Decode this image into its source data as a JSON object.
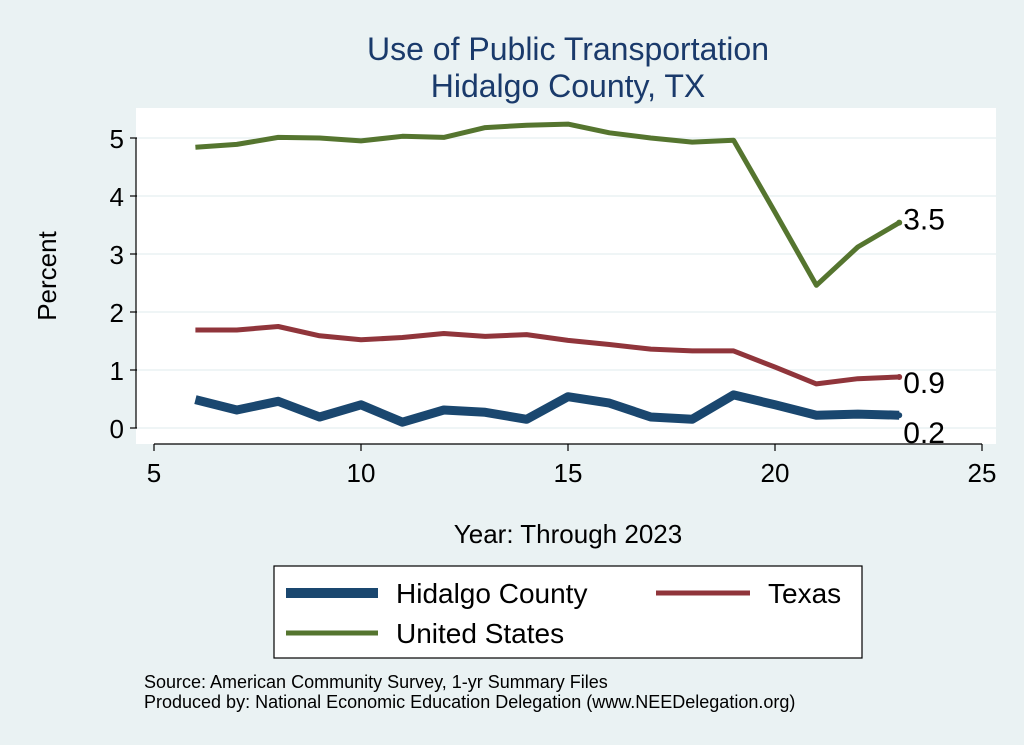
{
  "chart_data": {
    "type": "line",
    "title": [
      "Use of Public Transportation",
      "Hidalgo County, TX"
    ],
    "xlabel": "Year: Through 2023",
    "ylabel": "Percent",
    "xlim": [
      5,
      25
    ],
    "ylim": [
      0,
      5
    ],
    "xticks": [
      5,
      10,
      15,
      20,
      25
    ],
    "yticks": [
      0,
      1,
      2,
      3,
      4,
      5
    ],
    "grid": true,
    "legend_position": "bottom",
    "x": [
      6,
      7,
      8,
      9,
      10,
      11,
      12,
      13,
      14,
      15,
      16,
      17,
      18,
      19,
      20,
      21,
      22,
      23
    ],
    "series": [
      {
        "name": "Hidalgo County",
        "color": "#1a476f",
        "values": [
          0.49,
          0.31,
          0.46,
          0.19,
          0.4,
          0.1,
          0.31,
          0.27,
          0.15,
          0.54,
          0.43,
          0.19,
          0.15,
          0.57,
          0.4,
          0.22,
          0.24,
          0.22
        ],
        "end_label": "0.2"
      },
      {
        "name": "Texas",
        "color": "#90353b",
        "values": [
          1.69,
          1.69,
          1.75,
          1.59,
          1.52,
          1.56,
          1.63,
          1.58,
          1.61,
          1.51,
          1.44,
          1.36,
          1.33,
          1.33,
          1.05,
          0.76,
          0.85,
          0.88
        ],
        "end_label": "0.9"
      },
      {
        "name": "United States",
        "color": "#55752f",
        "values": [
          4.84,
          4.89,
          5.01,
          5.0,
          4.95,
          5.03,
          5.01,
          5.18,
          5.22,
          5.24,
          5.09,
          5.0,
          4.93,
          4.96,
          3.72,
          2.46,
          3.12,
          3.54
        ],
        "end_label": "3.5"
      }
    ],
    "source_lines": [
      "Source: American Community Survey, 1-yr Summary Files",
      "Produced by: National Economic Education Delegation (www.NEEDelegation.org)"
    ]
  }
}
